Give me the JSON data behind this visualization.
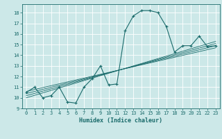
{
  "xlabel": "Humidex (Indice chaleur)",
  "bg_color": "#cce8e8",
  "line_color": "#1a6b6b",
  "grid_color": "#ffffff",
  "xlim": [
    -0.5,
    23.5
  ],
  "ylim": [
    9,
    18.8
  ],
  "xticks": [
    0,
    1,
    2,
    3,
    4,
    5,
    6,
    7,
    8,
    9,
    10,
    11,
    12,
    13,
    14,
    15,
    16,
    17,
    18,
    19,
    20,
    21,
    22,
    23
  ],
  "yticks": [
    9,
    10,
    11,
    12,
    13,
    14,
    15,
    16,
    17,
    18
  ],
  "main_series": {
    "x": [
      0,
      1,
      2,
      3,
      4,
      5,
      6,
      7,
      8,
      9,
      10,
      11,
      12,
      13,
      14,
      15,
      16,
      17,
      18,
      19,
      20,
      21,
      22,
      23
    ],
    "y": [
      10.5,
      11.0,
      10.0,
      10.2,
      11.0,
      9.6,
      9.5,
      11.0,
      11.8,
      13.0,
      11.2,
      11.3,
      16.3,
      17.7,
      18.2,
      18.2,
      18.0,
      16.7,
      14.3,
      14.9,
      14.9,
      15.8,
      14.8,
      14.9
    ]
  },
  "linear_lines": [
    {
      "x": [
        0,
        23
      ],
      "y": [
        10.6,
        14.7
      ]
    },
    {
      "x": [
        0,
        23
      ],
      "y": [
        10.4,
        14.9
      ]
    },
    {
      "x": [
        0,
        23
      ],
      "y": [
        10.2,
        15.1
      ]
    },
    {
      "x": [
        0,
        23
      ],
      "y": [
        10.0,
        15.3
      ]
    }
  ]
}
